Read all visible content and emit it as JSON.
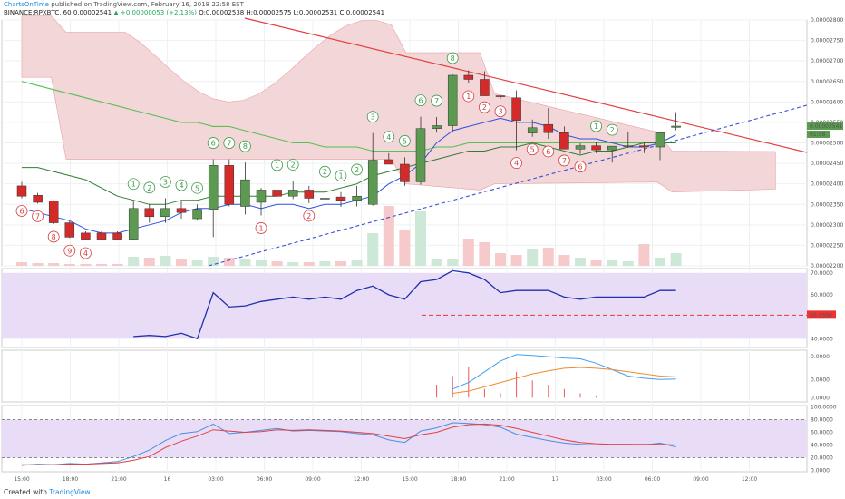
{
  "header": {
    "brand": "ChartsOnTime",
    "published": "published on TradingView.com, February 16, 2018 22:58 EST",
    "symbol": "BINANCE:RPXBTC, 60",
    "last": "0.00002541",
    "change": "▲ +0.00000053 (+2.13%)",
    "ohlc_o": "O:0.00002538",
    "ohlc_h": "H:0.00002575",
    "ohlc_l": "L:0.00002531",
    "ohlc_c": "C:0.00002541"
  },
  "footer": {
    "created_with": "Created with",
    "brand": "TradingView"
  },
  "colors": {
    "up": "#5b9a50",
    "down": "#d42a2a",
    "cloud": "#f3d6d8",
    "rsi": "#2030b0",
    "rsi_bg": "#e8dcf6",
    "trend_red": "#e34040",
    "trend_blue": "#3a4fd6",
    "macd": "#3fa0f0",
    "signal": "#f08a30"
  },
  "price_ticks": [
    "0.00002800",
    "0.00002750",
    "0.00002700",
    "0.00002650",
    "0.00002600",
    "0.00002550",
    "0.00002500",
    "0.00002450",
    "0.00002400",
    "0.00002350",
    "0.00002300",
    "0.00002250",
    "0.00002200"
  ],
  "price_tags": [
    "0.00002541",
    "01:58"
  ],
  "rsi_ticks": [
    "70.0000",
    "60.0000",
    "50.7500",
    "40.0000"
  ],
  "macd_ticks": [
    "0.0000",
    "0.0000",
    "0.0000"
  ],
  "stoch_ticks": [
    "100.0000",
    "80.0000",
    "60.0000",
    "40.0000",
    "20.0000",
    "0.0000"
  ],
  "time_labels": [
    "15:00",
    "18:00",
    "21:00",
    "16",
    "03:00",
    "06:00",
    "09:00",
    "12:00",
    "15:00",
    "18:00",
    "21:00",
    "17",
    "03:00",
    "06:00",
    "09:00",
    "12:00"
  ],
  "chart_data": {
    "type": "candlestick",
    "title": "BINANCE:RPXBTC, 60",
    "x_range": [
      "Feb 15 15:00",
      "Feb 17 13:00"
    ],
    "y_range": [
      2.2e-05,
      2.8e-05
    ],
    "series": [
      {
        "type": "ohlc",
        "values": [
          [
            2.395e-05,
            2.405e-05,
            2.365e-05,
            2.37e-05
          ],
          [
            2.372e-05,
            2.378e-05,
            2.352e-05,
            2.355e-05
          ],
          [
            2.358e-05,
            2.36e-05,
            2.302e-05,
            2.305e-05
          ],
          [
            2.305e-05,
            2.309e-05,
            2.268e-05,
            2.27e-05
          ],
          [
            2.28e-05,
            2.284e-05,
            2.262e-05,
            2.265e-05
          ],
          [
            2.28e-05,
            2.284e-05,
            2.262e-05,
            2.265e-05
          ],
          [
            2.28e-05,
            2.284e-05,
            2.262e-05,
            2.265e-05
          ],
          [
            2.265e-05,
            2.36e-05,
            2.262e-05,
            2.34e-05
          ],
          [
            2.34e-05,
            2.351e-05,
            2.305e-05,
            2.32e-05
          ],
          [
            2.32e-05,
            2.365e-05,
            2.305e-05,
            2.34e-05
          ],
          [
            2.34e-05,
            2.357e-05,
            2.315e-05,
            2.33e-05
          ],
          [
            2.315e-05,
            2.35e-05,
            2.313e-05,
            2.338e-05
          ],
          [
            2.338e-05,
            2.46e-05,
            2.27e-05,
            2.445e-05
          ],
          [
            2.445e-05,
            2.46e-05,
            2.345e-05,
            2.35e-05
          ],
          [
            2.345e-05,
            2.452e-05,
            2.325e-05,
            2.41e-05
          ],
          [
            2.355e-05,
            2.39e-05,
            2.323e-05,
            2.385e-05
          ],
          [
            2.385e-05,
            2.406e-05,
            2.363e-05,
            2.37e-05
          ],
          [
            2.37e-05,
            2.407e-05,
            2.363e-05,
            2.385e-05
          ],
          [
            2.385e-05,
            2.395e-05,
            2.353e-05,
            2.365e-05
          ],
          [
            2.365e-05,
            2.39e-05,
            2.354e-05,
            2.365e-05
          ],
          [
            2.368e-05,
            2.38e-05,
            2.344e-05,
            2.36e-05
          ],
          [
            2.36e-05,
            2.395e-05,
            2.345e-05,
            2.37e-05
          ],
          [
            2.35e-05,
            2.524e-05,
            2.347e-05,
            2.458e-05
          ],
          [
            2.459e-05,
            2.475e-05,
            2.448e-05,
            2.448e-05
          ],
          [
            2.448e-05,
            2.465e-05,
            2.395e-05,
            2.405e-05
          ],
          [
            2.405e-05,
            2.564e-05,
            2.398e-05,
            2.535e-05
          ],
          [
            2.535e-05,
            2.563e-05,
            2.525e-05,
            2.542e-05
          ],
          [
            2.542e-05,
            2.667e-05,
            2.525e-05,
            2.665e-05
          ],
          [
            2.665e-05,
            2.677e-05,
            2.645e-05,
            2.655e-05
          ],
          [
            2.655e-05,
            2.675e-05,
            2.618e-05,
            2.615e-05
          ],
          [
            2.615e-05,
            2.613e-05,
            2.608e-05,
            2.613e-05
          ],
          [
            2.61e-05,
            2.628e-05,
            2.482e-05,
            2.555e-05
          ],
          [
            2.524e-05,
            2.557e-05,
            2.515e-05,
            2.537e-05
          ],
          [
            2.545e-05,
            2.585e-05,
            2.51e-05,
            2.525e-05
          ],
          [
            2.525e-05,
            2.54e-05,
            2.488e-05,
            2.485e-05
          ],
          [
            2.485e-05,
            2.499e-05,
            2.473e-05,
            2.493e-05
          ],
          [
            2.493e-05,
            2.501e-05,
            2.475e-05,
            2.483e-05
          ],
          [
            2.483e-05,
            2.492e-05,
            2.452e-05,
            2.492e-05
          ],
          [
            2.492e-05,
            2.528e-05,
            2.488e-05,
            2.493e-05
          ],
          [
            2.493e-05,
            2.5e-05,
            2.475e-05,
            2.49e-05
          ],
          [
            2.49e-05,
            2.502e-05,
            2.458e-05,
            2.525e-05
          ],
          [
            2.538e-05,
            2.575e-05,
            2.531e-05,
            2.541e-05
          ]
        ]
      },
      {
        "name": "Tenkan",
        "type": "line",
        "values": [
          2.34e-05,
          2.33e-05,
          2.32e-05,
          2.31e-05,
          2.29e-05,
          2.28e-05,
          2.28e-05,
          2.29e-05,
          2.3e-05,
          2.31e-05,
          2.33e-05,
          2.34e-05,
          2.34e-05,
          2.35e-05,
          2.35e-05,
          2.34e-05,
          2.35e-05,
          2.35e-05,
          2.34e-05,
          2.35e-05,
          2.35e-05,
          2.36e-05,
          2.37e-05,
          2.4e-05,
          2.42e-05,
          2.45e-05,
          2.5e-05,
          2.53e-05,
          2.54e-05,
          2.55e-05,
          2.56e-05,
          2.55e-05,
          2.55e-05,
          2.54e-05,
          2.52e-05,
          2.51e-05,
          2.51e-05,
          2.5e-05,
          2.49e-05,
          2.49e-05,
          2.5e-05,
          2.52e-05
        ]
      },
      {
        "name": "Kijun",
        "type": "line",
        "values": [
          2.44e-05,
          2.44e-05,
          2.43e-05,
          2.42e-05,
          2.41e-05,
          2.39e-05,
          2.37e-05,
          2.36e-05,
          2.35e-05,
          2.35e-05,
          2.36e-05,
          2.36e-05,
          2.37e-05,
          2.37e-05,
          2.37e-05,
          2.37e-05,
          2.37e-05,
          2.38e-05,
          2.38e-05,
          2.38e-05,
          2.39e-05,
          2.4e-05,
          2.42e-05,
          2.43e-05,
          2.44e-05,
          2.45e-05,
          2.46e-05,
          2.47e-05,
          2.48e-05,
          2.48e-05,
          2.49e-05,
          2.49e-05,
          2.5e-05,
          2.49e-05,
          2.48e-05,
          2.47e-05,
          2.48e-05,
          2.48e-05,
          2.49e-05,
          2.5e-05,
          2.5e-05,
          2.5e-05
        ]
      },
      {
        "name": "MA",
        "type": "line",
        "values": [
          2.65e-05,
          2.64e-05,
          2.63e-05,
          2.62e-05,
          2.61e-05,
          2.6e-05,
          2.59e-05,
          2.58e-05,
          2.57e-05,
          2.56e-05,
          2.55e-05,
          2.55e-05,
          2.54e-05,
          2.54e-05,
          2.53e-05,
          2.52e-05,
          2.51e-05,
          2.5e-05,
          2.5e-05,
          2.49e-05,
          2.49e-05,
          2.49e-05,
          2.48e-05,
          2.48e-05,
          2.48e-05,
          2.48e-05,
          2.49e-05,
          2.49e-05,
          2.5e-05,
          2.5e-05,
          2.5e-05,
          2.5e-05,
          2.5e-05,
          2.5e-05,
          2.5e-05,
          2.5e-05,
          2.5e-05,
          2.5e-05,
          2.5e-05,
          2.5e-05,
          2.5e-05,
          2.5e-05
        ]
      },
      {
        "name": "RSI",
        "type": "line",
        "values": [
          null,
          null,
          null,
          null,
          null,
          null,
          null,
          41,
          41.5,
          41,
          42.5,
          40,
          61,
          54.5,
          55,
          57,
          58,
          59,
          58,
          59,
          58,
          62,
          64,
          60,
          58,
          66,
          67,
          71,
          70,
          67,
          61,
          62,
          62,
          62,
          59,
          58,
          59,
          59,
          59,
          59,
          62,
          62
        ]
      },
      {
        "name": "Stoch K",
        "type": "line",
        "values": [
          8,
          10,
          9,
          11,
          10,
          12,
          14,
          22,
          32,
          47,
          58,
          61,
          73,
          58,
          60,
          63,
          66,
          62,
          63,
          62,
          61,
          58,
          56,
          48,
          44,
          62,
          67,
          75,
          74,
          72,
          68,
          57,
          52,
          47,
          43,
          41,
          40,
          41,
          41,
          40,
          43,
          37
        ]
      },
      {
        "name": "Stoch D",
        "type": "line",
        "values": [
          9,
          9,
          9,
          10,
          10,
          11,
          12,
          16,
          22,
          36,
          46,
          54,
          64,
          62,
          60,
          61,
          64,
          63,
          64,
          63,
          62,
          60,
          58,
          54,
          50,
          56,
          60,
          68,
          72,
          73,
          71,
          66,
          60,
          54,
          48,
          44,
          42,
          41,
          41,
          41,
          41,
          40
        ]
      },
      {
        "name": "MACD",
        "type": "line",
        "values": [
          null,
          null,
          null,
          null,
          null,
          null,
          null,
          null,
          null,
          null,
          null,
          null,
          null,
          null,
          null,
          null,
          null,
          null,
          null,
          null,
          null,
          null,
          null,
          null,
          null,
          null,
          null,
          0.2,
          0.35,
          0.6,
          0.85,
          1.0,
          0.98,
          0.95,
          0.92,
          0.9,
          0.8,
          0.65,
          0.5,
          0.45,
          0.42,
          0.43
        ]
      },
      {
        "name": "Signal",
        "type": "line",
        "values": [
          null,
          null,
          null,
          null,
          null,
          null,
          null,
          null,
          null,
          null,
          null,
          null,
          null,
          null,
          null,
          null,
          null,
          null,
          null,
          null,
          null,
          null,
          null,
          null,
          null,
          null,
          null,
          0.1,
          0.15,
          0.25,
          0.35,
          0.45,
          0.55,
          0.62,
          0.68,
          0.7,
          0.68,
          0.65,
          0.6,
          0.55,
          0.5,
          0.48
        ]
      }
    ],
    "rsi_level": 50.75,
    "stoch_band": [
      20,
      80
    ],
    "sequential_labels": [
      {
        "i": 0,
        "n": "6",
        "up": false
      },
      {
        "i": 1,
        "n": "7",
        "up": false
      },
      {
        "i": 2,
        "n": "8",
        "up": false
      },
      {
        "i": 3,
        "n": "9",
        "up": false
      },
      {
        "i": 4,
        "n": "4",
        "up": false
      },
      {
        "i": 7,
        "n": "1",
        "up": true
      },
      {
        "i": 8,
        "n": "2",
        "up": true
      },
      {
        "i": 9,
        "n": "3",
        "up": true
      },
      {
        "i": 10,
        "n": "4",
        "up": true
      },
      {
        "i": 11,
        "n": "5",
        "up": true
      },
      {
        "i": 12,
        "n": "6",
        "up": true
      },
      {
        "i": 13,
        "n": "7",
        "up": true
      },
      {
        "i": 14,
        "n": "8",
        "up": true
      },
      {
        "i": 15,
        "n": "1",
        "up": false
      },
      {
        "i": 16,
        "n": "1",
        "up": true
      },
      {
        "i": 17,
        "n": "2",
        "up": true
      },
      {
        "i": 18,
        "n": "2",
        "up": false
      },
      {
        "i": 19,
        "n": "2",
        "up": true
      },
      {
        "i": 20,
        "n": "1",
        "up": true
      },
      {
        "i": 21,
        "n": "2",
        "up": true
      },
      {
        "i": 22,
        "n": "3",
        "up": true
      },
      {
        "i": 23,
        "n": "4",
        "up": true
      },
      {
        "i": 24,
        "n": "5",
        "up": true
      },
      {
        "i": 25,
        "n": "6",
        "up": true
      },
      {
        "i": 26,
        "n": "7",
        "up": true
      },
      {
        "i": 27,
        "n": "8",
        "up": true
      },
      {
        "i": 28,
        "n": "1",
        "up": false
      },
      {
        "i": 29,
        "n": "2",
        "up": false
      },
      {
        "i": 30,
        "n": "3",
        "up": false
      },
      {
        "i": 31,
        "n": "4",
        "up": false
      },
      {
        "i": 32,
        "n": "5",
        "up": false
      },
      {
        "i": 33,
        "n": "6",
        "up": false
      },
      {
        "i": 34,
        "n": "7",
        "up": false
      },
      {
        "i": 35,
        "n": "6",
        "up": false
      },
      {
        "i": 36,
        "n": "1",
        "up": true
      },
      {
        "i": 37,
        "n": "2",
        "up": true
      }
    ]
  }
}
